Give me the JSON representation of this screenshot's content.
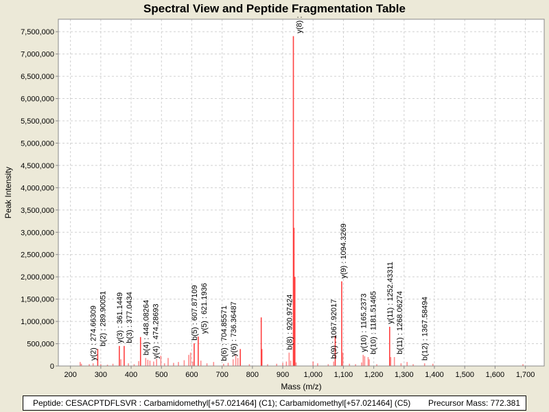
{
  "chart_data": {
    "type": "bar",
    "title": "Spectral View and Peptide Fragmentation Table",
    "xlabel": "Mass (m/z)",
    "ylabel": "Peak Intensity",
    "xlim": [
      160,
      1762
    ],
    "ylim": [
      0,
      7780000
    ],
    "xticks": [
      200,
      300,
      400,
      500,
      600,
      700,
      800,
      900,
      1000,
      1100,
      1200,
      1300,
      1400,
      1500,
      1600,
      1700
    ],
    "xtick_labels": [
      "200",
      "300",
      "400",
      "500",
      "600",
      "700",
      "800",
      "900",
      "1,000",
      "1,100",
      "1,200",
      "1,300",
      "1,400",
      "1,500",
      "1,600",
      "1,700"
    ],
    "yticks": [
      0,
      500000,
      1000000,
      1500000,
      2000000,
      2500000,
      3000000,
      3500000,
      4000000,
      4500000,
      5000000,
      5500000,
      6000000,
      6500000,
      7000000,
      7500000
    ],
    "ytick_labels": [
      "0",
      "500,000",
      "1,000,000",
      "1,500,000",
      "2,000,000",
      "2,500,000",
      "3,000,000",
      "3,500,000",
      "4,000,000",
      "4,500,000",
      "5,000,000",
      "5,500,000",
      "6,000,000",
      "6,500,000",
      "7,000,000",
      "7,500,000"
    ],
    "grid": true,
    "color": "#ff4040",
    "peaks": [
      [
        232,
        90000
      ],
      [
        236,
        50000
      ],
      [
        262,
        40000
      ],
      [
        274.66,
        60000
      ],
      [
        289.9,
        380000
      ],
      [
        300,
        40000
      ],
      [
        322,
        30000
      ],
      [
        340,
        50000
      ],
      [
        361.14,
        450000
      ],
      [
        366,
        150000
      ],
      [
        377.04,
        450000
      ],
      [
        391,
        60000
      ],
      [
        410,
        40000
      ],
      [
        425,
        110000
      ],
      [
        431,
        650000
      ],
      [
        448.08,
        180000
      ],
      [
        455,
        140000
      ],
      [
        462,
        120000
      ],
      [
        474.29,
        100000
      ],
      [
        484,
        160000
      ],
      [
        498,
        230000
      ],
      [
        510,
        60000
      ],
      [
        522,
        180000
      ],
      [
        540,
        70000
      ],
      [
        556,
        90000
      ],
      [
        575,
        130000
      ],
      [
        590,
        250000
      ],
      [
        596,
        300000
      ],
      [
        603,
        100000
      ],
      [
        607.87,
        510000
      ],
      [
        621.19,
        660000
      ],
      [
        630,
        120000
      ],
      [
        650,
        60000
      ],
      [
        672,
        90000
      ],
      [
        704.86,
        50000
      ],
      [
        720,
        70000
      ],
      [
        736.36,
        150000
      ],
      [
        745,
        240000
      ],
      [
        752,
        180000
      ],
      [
        760,
        380000
      ],
      [
        790,
        40000
      ],
      [
        829,
        1090000
      ],
      [
        831,
        380000
      ],
      [
        850,
        40000
      ],
      [
        880,
        50000
      ],
      [
        900,
        70000
      ],
      [
        912,
        100000
      ],
      [
        920.97,
        300000
      ],
      [
        926,
        120000
      ],
      [
        935,
        7400000
      ],
      [
        937,
        3100000
      ],
      [
        940,
        2000000
      ],
      [
        944,
        80000
      ],
      [
        1000,
        100000
      ],
      [
        1015,
        60000
      ],
      [
        1050,
        40000
      ],
      [
        1067.92,
        100000
      ],
      [
        1073,
        680000
      ],
      [
        1094.33,
        1900000
      ],
      [
        1098,
        300000
      ],
      [
        1120,
        50000
      ],
      [
        1140,
        40000
      ],
      [
        1160,
        80000
      ],
      [
        1165.24,
        250000
      ],
      [
        1170,
        220000
      ],
      [
        1181.51,
        200000
      ],
      [
        1185,
        150000
      ],
      [
        1210,
        40000
      ],
      [
        1252.43,
        880000
      ],
      [
        1256,
        200000
      ],
      [
        1268.06,
        200000
      ],
      [
        1290,
        60000
      ],
      [
        1310,
        90000
      ],
      [
        1330,
        40000
      ],
      [
        1367.58,
        60000
      ],
      [
        1395,
        50000
      ],
      [
        1692,
        40000
      ]
    ],
    "annotations": [
      {
        "mz": 274.66,
        "label": "y(2) : 274.66309"
      },
      {
        "mz": 289.9,
        "label": "b(2) : 289.90051"
      },
      {
        "mz": 361.14,
        "label": "y(3) : 361.1449"
      },
      {
        "mz": 377.04,
        "label": "b(3) : 377.0434"
      },
      {
        "mz": 448.08,
        "label": "b(4) : 448.08264"
      },
      {
        "mz": 474.29,
        "label": "y(4) : 474.28693"
      },
      {
        "mz": 607.87,
        "label": "b(5) : 607.87109"
      },
      {
        "mz": 621.19,
        "label": "y(5) : 621.1936"
      },
      {
        "mz": 704.86,
        "label": "b(6) : 704.85571"
      },
      {
        "mz": 736.36,
        "label": "y(6) : 736.36487"
      },
      {
        "mz": 920.97,
        "label": "b(8) : 920.97424"
      },
      {
        "mz": 935,
        "label": "y(8) :"
      },
      {
        "mz": 1067.92,
        "label": "b(9) : 1067.92017"
      },
      {
        "mz": 1094.33,
        "label": "y(9) : 1094.3269"
      },
      {
        "mz": 1165.24,
        "label": "y(10) : 1165.2373"
      },
      {
        "mz": 1181.51,
        "label": "b(10) : 1181.51465"
      },
      {
        "mz": 1252.43,
        "label": "y(11) : 1252.43311"
      },
      {
        "mz": 1268.06,
        "label": "b(11) : 1268.06274"
      },
      {
        "mz": 1367.58,
        "label": "b(12) : 1367.58494"
      }
    ]
  },
  "legend": {
    "peptide": "Peptide: CESACPTDFLSVR : Carbamidomethyl[+57.021464] (C1); Carbamidomethyl[+57.021464] (C5)",
    "precursor": "Precursor Mass: 772.381"
  }
}
